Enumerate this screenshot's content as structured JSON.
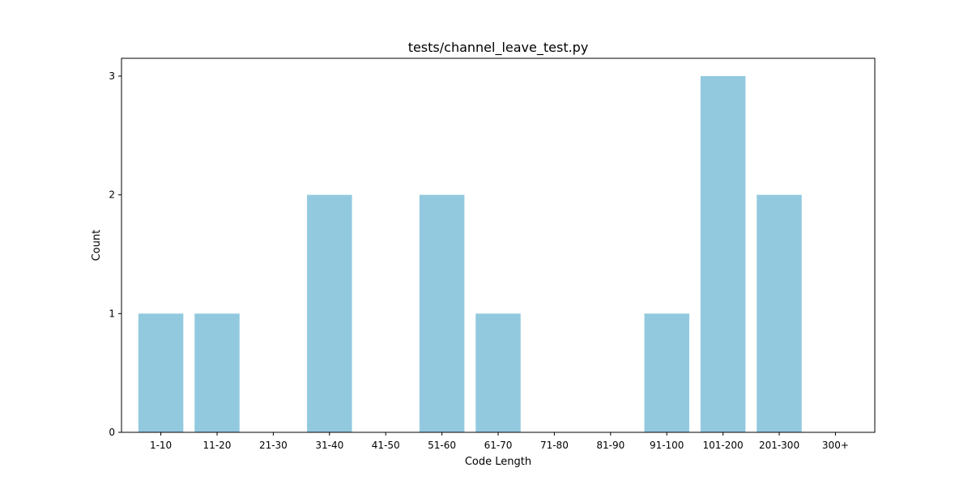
{
  "chart_data": {
    "type": "bar",
    "title": "tests/channel_leave_test.py",
    "xlabel": "Code Length",
    "ylabel": "Count",
    "categories": [
      "1-10",
      "11-20",
      "21-30",
      "31-40",
      "41-50",
      "51-60",
      "61-70",
      "71-80",
      "81-90",
      "91-100",
      "101-200",
      "201-300",
      "300+"
    ],
    "values": [
      1,
      1,
      0,
      2,
      0,
      2,
      1,
      0,
      0,
      1,
      3,
      2,
      0
    ],
    "yticks": [
      0,
      1,
      2,
      3
    ],
    "ylim": [
      0,
      3.15
    ],
    "grid": false,
    "legend": "none",
    "bar_color": "#92c9df"
  }
}
